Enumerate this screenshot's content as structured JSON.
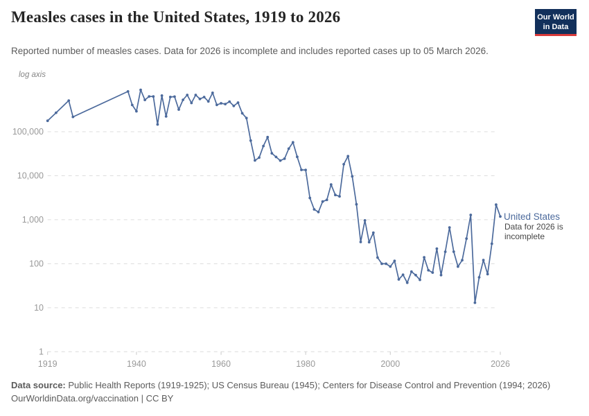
{
  "header": {
    "title": "Measles cases in the United States, 1919 to 2026",
    "subtitle": "Reported number of measles cases. Data for 2026 is incomplete and includes reported cases up to 05 March 2026.",
    "logo": {
      "line1": "Our World",
      "line2": "in Data",
      "bg_color": "#12305b",
      "accent_color": "#d93a3a"
    }
  },
  "labels": {
    "log_axis": "log axis",
    "entity": "United States",
    "annotation": "Data for 2026 is incomplete"
  },
  "chart_data": {
    "type": "line",
    "title": "Measles cases in the United States, 1919 to 2026",
    "xlabel": "",
    "ylabel": "log axis",
    "y_scale": "log",
    "xlim": [
      1919,
      2026
    ],
    "ylim": [
      1,
      1000000
    ],
    "x_ticks": [
      1919,
      1940,
      1960,
      1980,
      2000,
      2026
    ],
    "y_ticks": [
      1,
      10,
      100,
      1000,
      10000,
      100000
    ],
    "grid": "horizontal-dashed",
    "legend_position": "right-of-line-end",
    "line_color": "#4C6A9C",
    "grid_color": "#dcdcdc",
    "tick_label_color": "#999999",
    "series": [
      {
        "name": "United States",
        "color": "#4C6A9C",
        "note": "Data for 2026 is incomplete",
        "points": [
          [
            1919,
            176980
          ],
          [
            1921,
            270000
          ],
          [
            1924,
            509000
          ],
          [
            1925,
            217000
          ],
          [
            1938,
            822811
          ],
          [
            1939,
            404766
          ],
          [
            1940,
            291162
          ],
          [
            1941,
            894134
          ],
          [
            1942,
            527653
          ],
          [
            1943,
            633627
          ],
          [
            1944,
            630291
          ],
          [
            1945,
            146013
          ],
          [
            1946,
            659843
          ],
          [
            1947,
            222375
          ],
          [
            1948,
            615104
          ],
          [
            1949,
            625281
          ],
          [
            1950,
            319124
          ],
          [
            1951,
            530118
          ],
          [
            1952,
            683077
          ],
          [
            1953,
            449146
          ],
          [
            1954,
            682720
          ],
          [
            1955,
            555156
          ],
          [
            1956,
            611936
          ],
          [
            1957,
            486799
          ],
          [
            1958,
            763094
          ],
          [
            1959,
            406162
          ],
          [
            1960,
            441703
          ],
          [
            1961,
            423919
          ],
          [
            1962,
            481530
          ],
          [
            1963,
            385156
          ],
          [
            1964,
            458083
          ],
          [
            1965,
            261904
          ],
          [
            1966,
            204136
          ],
          [
            1967,
            62705
          ],
          [
            1968,
            22231
          ],
          [
            1969,
            25826
          ],
          [
            1970,
            47351
          ],
          [
            1971,
            75290
          ],
          [
            1972,
            32275
          ],
          [
            1973,
            26690
          ],
          [
            1974,
            22094
          ],
          [
            1975,
            24374
          ],
          [
            1976,
            41126
          ],
          [
            1977,
            57345
          ],
          [
            1978,
            26871
          ],
          [
            1979,
            13597
          ],
          [
            1980,
            13506
          ],
          [
            1981,
            3124
          ],
          [
            1982,
            1714
          ],
          [
            1983,
            1497
          ],
          [
            1984,
            2587
          ],
          [
            1985,
            2822
          ],
          [
            1986,
            6282
          ],
          [
            1987,
            3655
          ],
          [
            1988,
            3396
          ],
          [
            1989,
            18193
          ],
          [
            1990,
            27786
          ],
          [
            1991,
            9643
          ],
          [
            1992,
            2237
          ],
          [
            1993,
            312
          ],
          [
            1994,
            963
          ],
          [
            1995,
            309
          ],
          [
            1996,
            508
          ],
          [
            1997,
            138
          ],
          [
            1998,
            100
          ],
          [
            1999,
            100
          ],
          [
            2000,
            86
          ],
          [
            2001,
            116
          ],
          [
            2002,
            44
          ],
          [
            2003,
            56
          ],
          [
            2004,
            37
          ],
          [
            2005,
            66
          ],
          [
            2006,
            55
          ],
          [
            2007,
            43
          ],
          [
            2008,
            140
          ],
          [
            2009,
            71
          ],
          [
            2010,
            63
          ],
          [
            2011,
            220
          ],
          [
            2012,
            55
          ],
          [
            2013,
            187
          ],
          [
            2014,
            667
          ],
          [
            2015,
            188
          ],
          [
            2016,
            86
          ],
          [
            2017,
            120
          ],
          [
            2018,
            372
          ],
          [
            2019,
            1282
          ],
          [
            2020,
            13
          ],
          [
            2021,
            49
          ],
          [
            2022,
            121
          ],
          [
            2023,
            58
          ],
          [
            2024,
            285
          ],
          [
            2025,
            2200
          ],
          [
            2026,
            1180
          ]
        ]
      }
    ]
  },
  "footer": {
    "source_label": "Data source:",
    "source_text": " Public Health Reports (1919-1925); US Census Bureau (1945); Centers for Disease Control and Prevention (1994; 2026)",
    "license": "OurWorldinData.org/vaccination | CC BY"
  }
}
